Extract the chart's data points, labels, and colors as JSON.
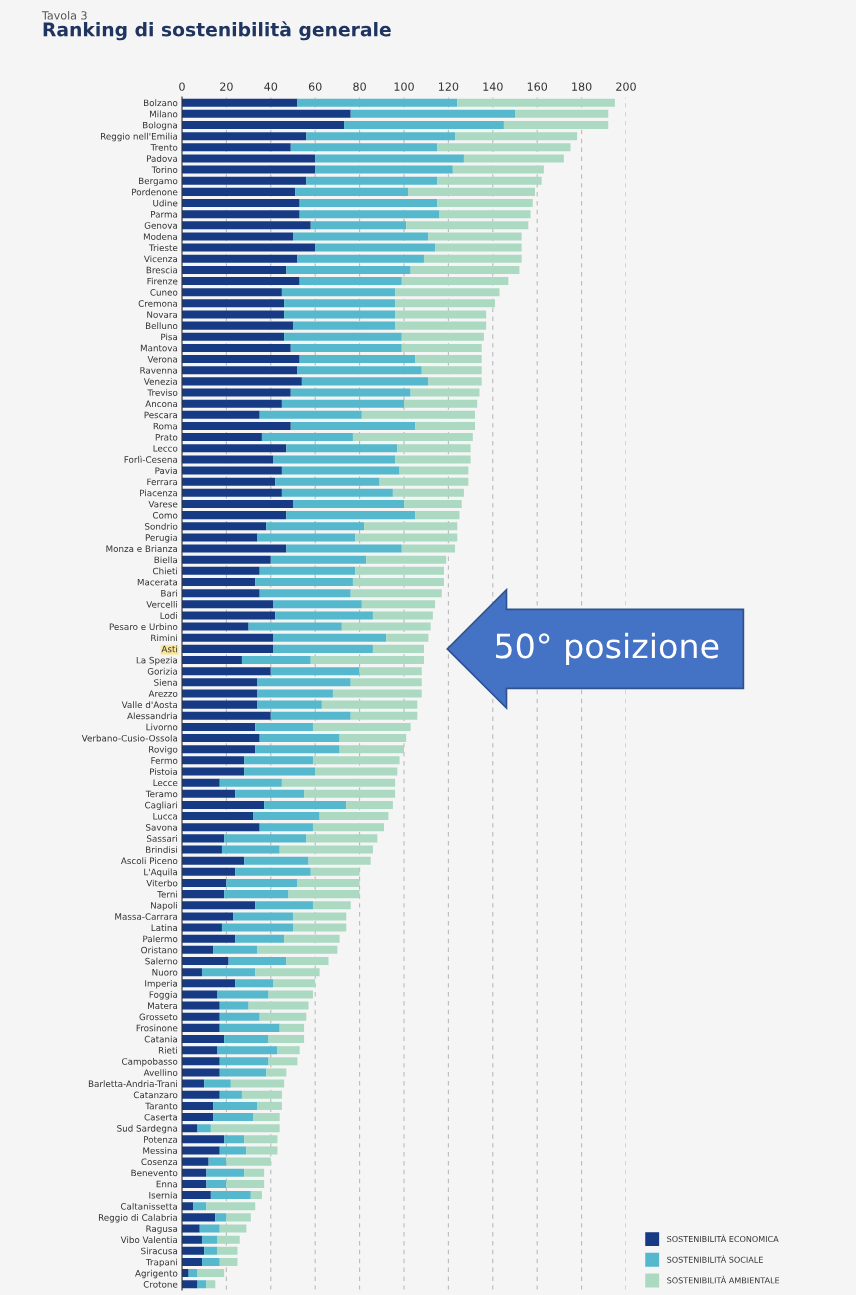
{
  "chart_data": {
    "type": "bar",
    "orientation": "horizontal",
    "stacked": true,
    "title": "Ranking di sostenibilità generale",
    "annotations": [
      "Tavola 3",
      {
        "text": "50° posizione",
        "x": 109,
        "y": "Asti"
      }
    ],
    "categories": [
      "Bolzano",
      "Milano",
      "Bologna",
      "Reggio nell'Emilia",
      "Trento",
      "Padova",
      "Torino",
      "Bergamo",
      "Pordenone",
      "Udine",
      "Parma",
      "Genova",
      "Modena",
      "Trieste",
      "Vicenza",
      "Brescia",
      "Firenze",
      "Cuneo",
      "Cremona",
      "Novara",
      "Belluno",
      "Pisa",
      "Mantova",
      "Verona",
      "Ravenna",
      "Venezia",
      "Treviso",
      "Ancona",
      "Pescara",
      "Roma",
      "Prato",
      "Lecco",
      "Forlì-Cesena",
      "Pavia",
      "Ferrara",
      "Piacenza",
      "Varese",
      "Como",
      "Sondrio",
      "Perugia",
      "Monza e Brianza",
      "Biella",
      "Chieti",
      "Macerata",
      "Bari",
      "Vercelli",
      "Lodi",
      "Pesaro e Urbino",
      "Rimini",
      "Asti",
      "La Spezia",
      "Gorizia",
      "Siena",
      "Arezzo",
      "Valle d'Aosta",
      "Alessandria",
      "Livorno",
      "Verbano-Cusio-Ossola",
      "Rovigo",
      "Fermo",
      "Pistoia",
      "Lecce",
      "Teramo",
      "Cagliari",
      "Lucca",
      "Savona",
      "Sassari",
      "Brindisi",
      "Ascoli Piceno",
      "L'Aquila",
      "Viterbo",
      "Terni",
      "Napoli",
      "Massa-Carrara",
      "Latina",
      "Palermo",
      "Oristano",
      "Salerno",
      "Nuoro",
      "Imperia",
      "Foggia",
      "Matera",
      "Grosseto",
      "Frosinone",
      "Catania",
      "Rieti",
      "Campobasso",
      "Avellino",
      "Barletta-Andria-Trani",
      "Catanzaro",
      "Taranto",
      "Caserta",
      "Sud Sardegna",
      "Potenza",
      "Messina",
      "Cosenza",
      "Benevento",
      "Enna",
      "Isernia",
      "Caltanissetta",
      "Reggio di Calabria",
      "Ragusa",
      "Vibo Valentia",
      "Siracusa",
      "Trapani",
      "Agrigento",
      "Crotone"
    ],
    "series": [
      {
        "name": "SOSTENIBILITÀ ECONOMICA",
        "color": "#173a85",
        "values": [
          52,
          76,
          73,
          56,
          49,
          60,
          60,
          56,
          51,
          53,
          53,
          58,
          50,
          60,
          52,
          47,
          53,
          45,
          46,
          46,
          50,
          46,
          49,
          53,
          52,
          54,
          49,
          45,
          35,
          49,
          36,
          47,
          41,
          45,
          42,
          45,
          50,
          47,
          38,
          34,
          47,
          40,
          35,
          33,
          35,
          41,
          42,
          30,
          41,
          41,
          27,
          40,
          34,
          34,
          34,
          40,
          33,
          35,
          33,
          28,
          28,
          17,
          24,
          37,
          32,
          35,
          19,
          18,
          28,
          24,
          20,
          19,
          33,
          23,
          18,
          24,
          14,
          21,
          9,
          24,
          16,
          17,
          17,
          17,
          19,
          16,
          17,
          17,
          10,
          17,
          14,
          14,
          7,
          19,
          17,
          12,
          11,
          11,
          13,
          5,
          15,
          8,
          9,
          10,
          9,
          3,
          7
        ]
      },
      {
        "name": "SOSTENIBILITÀ SOCIALE",
        "color": "#55b8cc",
        "values": [
          72,
          74,
          72,
          67,
          66,
          67,
          62,
          59,
          51,
          62,
          63,
          43,
          61,
          54,
          57,
          56,
          46,
          51,
          50,
          50,
          46,
          53,
          50,
          52,
          56,
          57,
          54,
          55,
          46,
          56,
          41,
          50,
          55,
          53,
          47,
          50,
          50,
          58,
          44,
          44,
          52,
          43,
          43,
          44,
          41,
          40,
          44,
          42,
          51,
          45,
          31,
          40,
          42,
          34,
          29,
          36,
          26,
          36,
          38,
          31,
          32,
          28,
          31,
          37,
          30,
          24,
          37,
          26,
          29,
          34,
          32,
          29,
          26,
          27,
          32,
          22,
          20,
          26,
          24,
          17,
          23,
          13,
          18,
          27,
          20,
          27,
          22,
          21,
          12,
          10,
          20,
          18,
          6,
          9,
          12,
          8,
          17,
          9,
          18,
          6,
          5,
          9,
          7,
          6,
          8,
          4,
          4
        ]
      },
      {
        "name": "SOSTENIBILITÀ AMBIENTALE",
        "color": "#acd9c1",
        "values": [
          71,
          42,
          47,
          55,
          60,
          45,
          41,
          47,
          57,
          43,
          41,
          55,
          42,
          39,
          44,
          49,
          48,
          47,
          45,
          41,
          41,
          37,
          36,
          30,
          27,
          24,
          31,
          33,
          51,
          27,
          54,
          33,
          34,
          31,
          40,
          32,
          26,
          20,
          42,
          46,
          24,
          36,
          40,
          41,
          41,
          33,
          27,
          40,
          19,
          23,
          51,
          28,
          32,
          40,
          43,
          30,
          44,
          30,
          29,
          39,
          37,
          51,
          41,
          21,
          31,
          32,
          32,
          42,
          28,
          22,
          28,
          32,
          17,
          24,
          24,
          25,
          36,
          19,
          29,
          19,
          20,
          27,
          21,
          11,
          16,
          10,
          13,
          9,
          24,
          18,
          11,
          12,
          31,
          15,
          14,
          20,
          9,
          17,
          5,
          22,
          11,
          12,
          10,
          9,
          8,
          12,
          4
        ]
      }
    ],
    "xlim": [
      0,
      200
    ],
    "xticks": [
      0,
      20,
      40,
      60,
      80,
      100,
      120,
      140,
      160,
      180,
      200
    ],
    "grid": "x",
    "legend": "bottom right"
  }
}
